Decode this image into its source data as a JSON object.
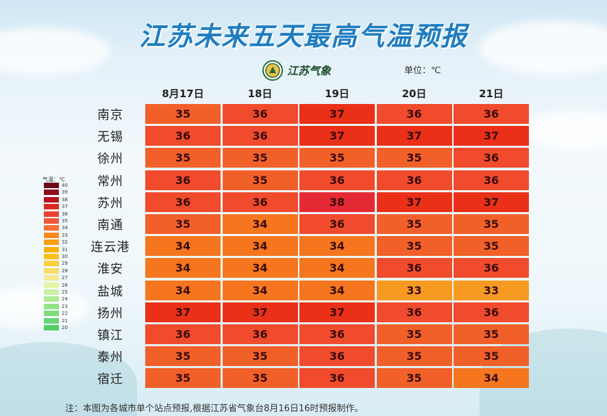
{
  "title": "江苏未来五天最高气温预报",
  "brand": "江苏气象",
  "unit": "单位：℃",
  "legend": {
    "title": "气温：℃",
    "levels": [
      {
        "value": "40",
        "color": "#6e0a1a"
      },
      {
        "value": "39",
        "color": "#8e0f1c"
      },
      {
        "value": "38",
        "color": "#b8141f"
      },
      {
        "value": "37",
        "color": "#d92a22"
      },
      {
        "value": "36",
        "color": "#ec4032"
      },
      {
        "value": "35",
        "color": "#f2593a"
      },
      {
        "value": "34",
        "color": "#f77034"
      },
      {
        "value": "33",
        "color": "#fa8a1e"
      },
      {
        "value": "32",
        "color": "#fb9e12"
      },
      {
        "value": "31",
        "color": "#fbb010"
      },
      {
        "value": "30",
        "color": "#fcc01a"
      },
      {
        "value": "29",
        "color": "#fccf3c"
      },
      {
        "value": "28",
        "color": "#fcdc68"
      },
      {
        "value": "27",
        "color": "#f6ea90"
      },
      {
        "value": "26",
        "color": "#e4f5a4"
      },
      {
        "value": "25",
        "color": "#c9f0a2"
      },
      {
        "value": "24",
        "color": "#aeeb94"
      },
      {
        "value": "23",
        "color": "#93e488"
      },
      {
        "value": "22",
        "color": "#7ddd7c"
      },
      {
        "value": "21",
        "color": "#66d672"
      },
      {
        "value": "20",
        "color": "#4fcf66"
      }
    ]
  },
  "cell_colors": {
    "33": "#f79a22",
    "34": "#f5761f",
    "35": "#f2602a",
    "36": "#ef4b2c",
    "37": "#ea3018",
    "38": "#e62a35"
  },
  "note": "注：本图为各城市单个站点预报,根据江苏省气象台8月16日16时预报制作。",
  "chart_data": {
    "type": "heatmap",
    "title": "江苏未来五天最高气温预报",
    "unit": "℃",
    "columns": [
      "8月17日",
      "18日",
      "19日",
      "20日",
      "21日"
    ],
    "rows": [
      {
        "city": "南京",
        "values": [
          35,
          36,
          37,
          36,
          36
        ]
      },
      {
        "city": "无锡",
        "values": [
          36,
          36,
          37,
          37,
          37
        ]
      },
      {
        "city": "徐州",
        "values": [
          35,
          35,
          35,
          35,
          36
        ]
      },
      {
        "city": "常州",
        "values": [
          36,
          35,
          36,
          36,
          36
        ]
      },
      {
        "city": "苏州",
        "values": [
          36,
          36,
          38,
          37,
          37
        ]
      },
      {
        "city": "南通",
        "values": [
          35,
          34,
          36,
          35,
          35
        ]
      },
      {
        "city": "连云港",
        "values": [
          34,
          34,
          34,
          35,
          35
        ]
      },
      {
        "city": "淮安",
        "values": [
          34,
          34,
          34,
          36,
          36
        ]
      },
      {
        "city": "盐城",
        "values": [
          34,
          34,
          34,
          33,
          33
        ]
      },
      {
        "city": "扬州",
        "values": [
          37,
          37,
          37,
          36,
          36
        ]
      },
      {
        "city": "镇江",
        "values": [
          36,
          36,
          36,
          35,
          35
        ]
      },
      {
        "city": "泰州",
        "values": [
          35,
          35,
          36,
          35,
          35
        ]
      },
      {
        "city": "宿迁",
        "values": [
          35,
          35,
          36,
          35,
          34
        ]
      }
    ]
  }
}
